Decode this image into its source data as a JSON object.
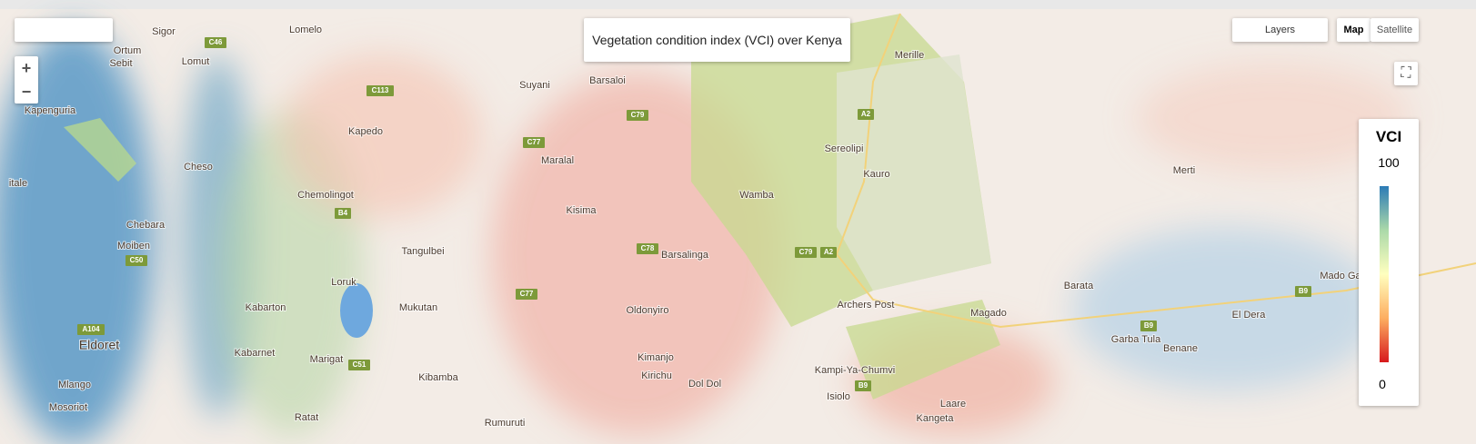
{
  "title": "Vegetation condition index (VCI) over Kenya",
  "controls": {
    "layers": "Layers",
    "map": "Map",
    "satellite": "Satellite"
  },
  "legend": {
    "title": "VCI",
    "max": 100,
    "min": 0
  },
  "places": [
    "Sigor",
    "Lomelo",
    "Ortum",
    "Lomut",
    "Sebit",
    "Kapenguria",
    "Suyani",
    "Barsaloi",
    "Merille",
    "Kapedo",
    "Sereolipi",
    "Kauro",
    "Cheso",
    "Chemolingot",
    "Maralal",
    "Wamba",
    "Merti",
    "itale",
    "Chebara",
    "Moiben",
    "Kisima",
    "Tangulbei",
    "Barsalinga",
    "Barata",
    "Mado Ga",
    "Loruk",
    "Mukutan",
    "Oldonyiro",
    "Archers Post",
    "Magado",
    "El Dera",
    "Kabarton",
    "Garba Tula",
    "Benane",
    "Eldoret",
    "Kabarnet",
    "Marigat",
    "Kimanjo",
    "Kirichu",
    "Dol Dol",
    "Kampi-Ya-Chumvi",
    "Isiolo",
    "Mlango",
    "Kibamba",
    "Laare",
    "Mosoriot",
    "Ratat",
    "Rumuruti",
    "Kangeta"
  ],
  "roads": [
    "C46",
    "C113",
    "C79",
    "C77",
    "A2",
    "B4",
    "C78",
    "C79",
    "A2",
    "C50",
    "C77",
    "A104",
    "C51",
    "B9",
    "B9",
    "B9"
  ]
}
